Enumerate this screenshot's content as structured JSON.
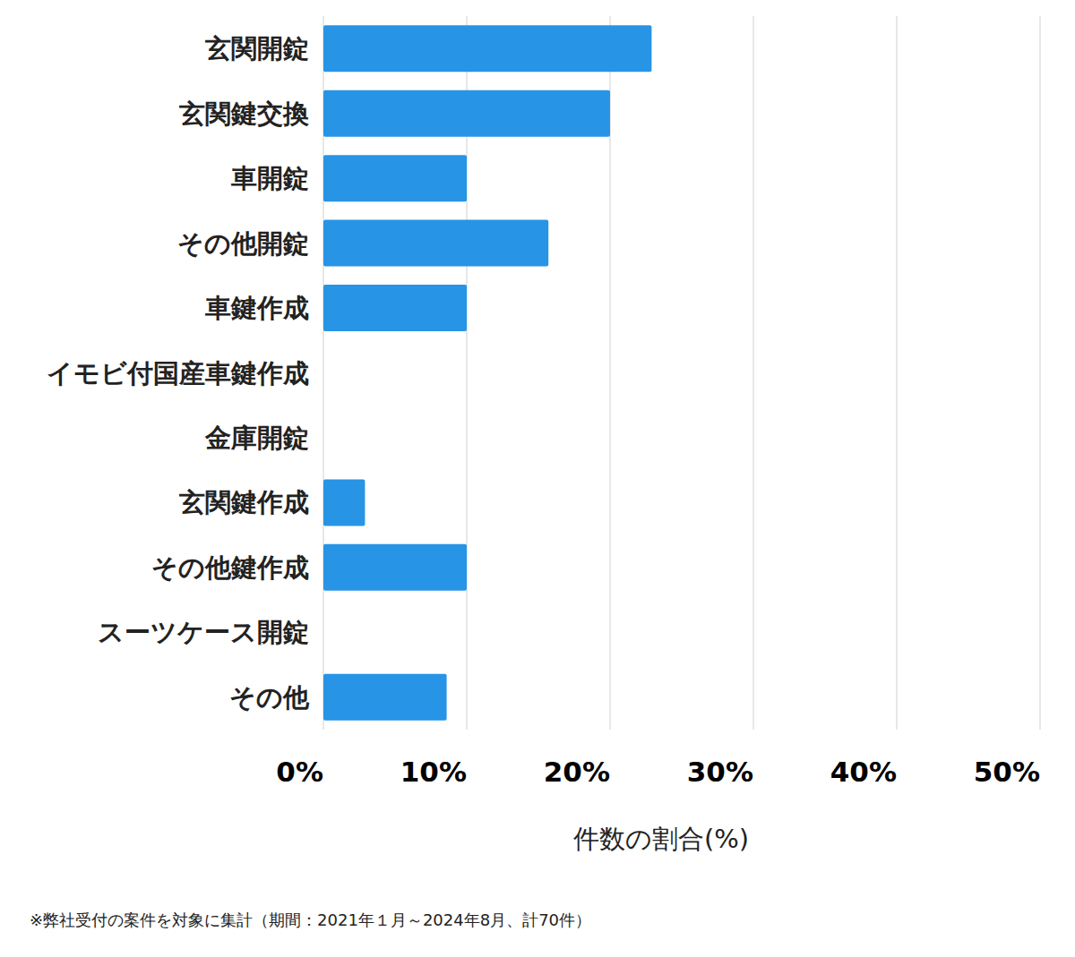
{
  "chart_data": {
    "type": "bar",
    "orientation": "horizontal",
    "categories": [
      "玄関開錠",
      "玄関鍵交換",
      "車開錠",
      "その他開錠",
      "車鍵作成",
      "イモビ付国産車鍵作成",
      "金庫開錠",
      "玄関鍵作成",
      "その他鍵作成",
      "スーツケース開錠",
      "その他"
    ],
    "values": [
      22.9,
      20,
      10,
      15.7,
      10,
      0,
      0,
      2.9,
      10,
      0,
      8.6
    ],
    "color": "#2794e6",
    "xlabel": "件数の割合(%)",
    "xlim": [
      0,
      50
    ],
    "xticks": [
      {
        "value": 0,
        "label": "0%"
      },
      {
        "value": 10,
        "label": "10%"
      },
      {
        "value": 20,
        "label": "20%"
      },
      {
        "value": 30,
        "label": "30%"
      },
      {
        "value": 40,
        "label": "40%"
      },
      {
        "value": 50,
        "label": "50%"
      }
    ],
    "grid": true,
    "data_labels": false,
    "annotations": [
      "※弊社受付の案件を対象に集計（期間：2021年１月～2024年8月、計70件）"
    ]
  }
}
